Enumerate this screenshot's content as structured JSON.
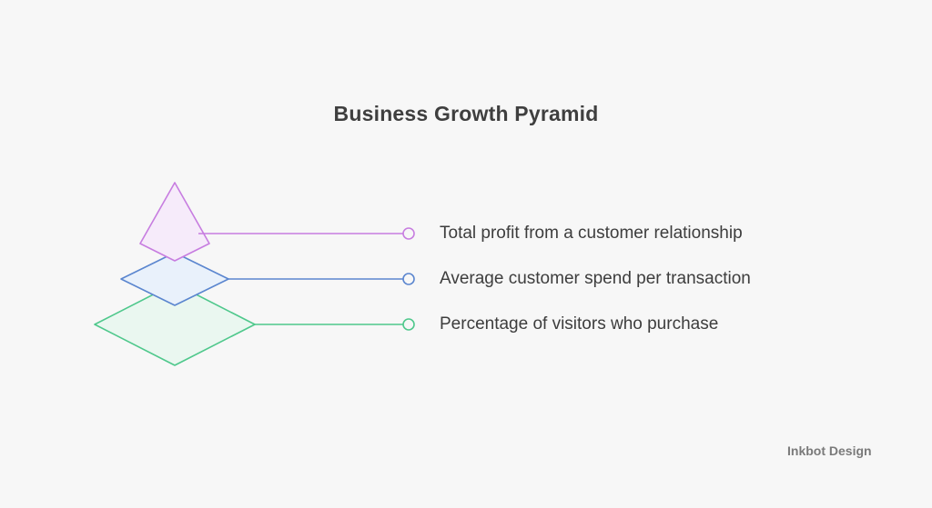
{
  "diagram": {
    "title": "Business Growth Pyramid",
    "levels": [
      {
        "label": "Total profit from a customer relationship",
        "color": "#c77de0",
        "fill": "#f6ebfa"
      },
      {
        "label": "Average customer spend per transaction",
        "color": "#5b86cf",
        "fill": "#e9f1fb"
      },
      {
        "label": "Percentage of visitors who purchase",
        "color": "#4fc88c",
        "fill": "#eaf7f0"
      }
    ]
  },
  "footer": {
    "brand": "Inkbot Design"
  }
}
